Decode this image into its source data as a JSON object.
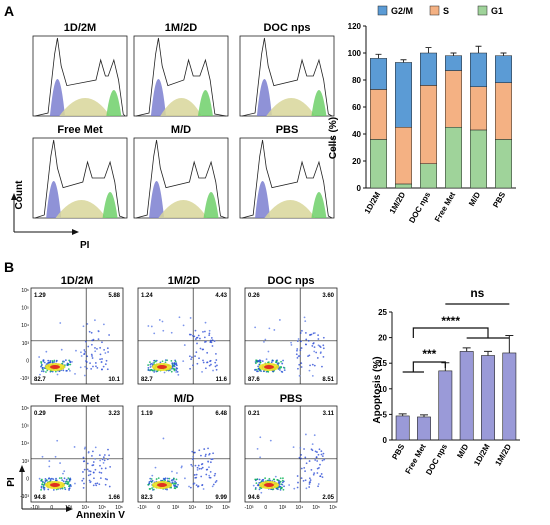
{
  "panels": {
    "a": "A",
    "b": "B"
  },
  "colors": {
    "g1": "#9fd39a",
    "s": "#f4b183",
    "g2m": "#5b9bd5",
    "hist_g1": "#7b7fd0",
    "hist_s": "#d8d69a",
    "hist_g2m": "#6fd06a",
    "apoptosis_bar": "#9a9ad8"
  },
  "histograms": {
    "items": [
      {
        "label": "1D/2M"
      },
      {
        "label": "1M/2D"
      },
      {
        "label": "DOC nps"
      },
      {
        "label": "Free Met"
      },
      {
        "label": "M/D"
      },
      {
        "label": "PBS"
      }
    ],
    "y_label": "Count",
    "x_label": "PI"
  },
  "flow": {
    "items": [
      {
        "label": "1D/2M",
        "q_ul": "1.29",
        "q_ur": "5.88",
        "q_ll": "82.7",
        "q_lr": "10.1"
      },
      {
        "label": "1M/2D",
        "q_ul": "1.24",
        "q_ur": "4.43",
        "q_ll": "82.7",
        "q_lr": "11.6"
      },
      {
        "label": "DOC nps",
        "q_ul": "0.26",
        "q_ur": "3.60",
        "q_ll": "87.6",
        "q_lr": "8.51"
      },
      {
        "label": "Free Met",
        "q_ul": "0.29",
        "q_ur": "3.23",
        "q_ll": "94.8",
        "q_lr": "1.66"
      },
      {
        "label": "M/D",
        "q_ul": "1.19",
        "q_ur": "6.48",
        "q_ll": "82.3",
        "q_lr": "9.99"
      },
      {
        "label": "PBS",
        "q_ul": "0.21",
        "q_ur": "3.11",
        "q_ll": "94.6",
        "q_lr": "2.05"
      }
    ],
    "y_label": "PI",
    "x_label": "Annexin V"
  },
  "chart_data": [
    {
      "type": "bar",
      "stacked": true,
      "categories": [
        "1D/2M",
        "1M/2D",
        "DOC nps",
        "Free Met",
        "M/D",
        "PBS"
      ],
      "series": [
        {
          "name": "G1",
          "values": [
            36,
            3,
            18,
            45,
            43,
            36
          ],
          "errors": [
            9,
            1,
            3,
            3,
            5,
            2
          ]
        },
        {
          "name": "S",
          "values": [
            37,
            42,
            58,
            42,
            32,
            42
          ],
          "errors": [
            5,
            3,
            2,
            1,
            10,
            2
          ]
        },
        {
          "name": "G2/M",
          "values": [
            23,
            48,
            24,
            11,
            25,
            20
          ],
          "errors": [
            3,
            2,
            4,
            2,
            5,
            2
          ]
        }
      ],
      "legend": [
        "G2/M",
        "S",
        "G1"
      ],
      "legend_position": "top",
      "ylabel": "Cells (%)",
      "ylim": [
        0,
        120
      ],
      "yticks": [
        "0",
        "20",
        "40",
        "60",
        "80",
        "100",
        "120"
      ]
    },
    {
      "type": "bar",
      "categories": [
        "PBS",
        "Free Met",
        "DOC nps",
        "M/D",
        "1D/2M",
        "1M/2D"
      ],
      "values": [
        4.7,
        4.5,
        13.5,
        17.3,
        16.5,
        17.0
      ],
      "errors": [
        0.4,
        0.4,
        1.6,
        0.7,
        0.8,
        3.4
      ],
      "ylabel": "Apoptosis (%)",
      "ylim": [
        0,
        25
      ],
      "yticks": [
        "0",
        "5",
        "10",
        "15",
        "20",
        "25"
      ],
      "significance": [
        "ns",
        "****",
        "***"
      ]
    }
  ]
}
